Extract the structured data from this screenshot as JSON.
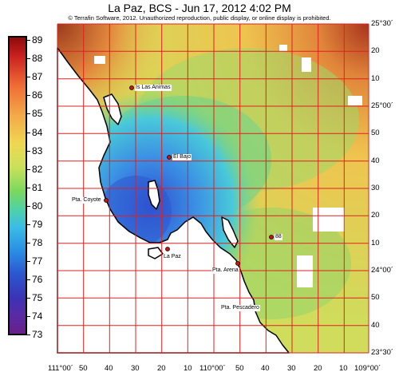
{
  "title": "La Paz, BCS - Jun 17, 2012 4:02 PM",
  "copyright": "© Terrafin Software, 2012.  Unauthorized reproduction, public display, or online display is prohibited.",
  "colorbar": {
    "labels": [
      "89",
      "88",
      "87",
      "86",
      "85",
      "84",
      "83",
      "82",
      "81",
      "80",
      "79",
      "78",
      "77",
      "76",
      "75",
      "74",
      "73"
    ]
  },
  "places": [
    {
      "name": "Is Las Animas",
      "color": "#d01010"
    },
    {
      "name": "El Bajo",
      "color": "#d01010"
    },
    {
      "name": "Pta. Coyote",
      "color": "#d01010"
    },
    {
      "name": "La Paz",
      "color": "#d01010"
    },
    {
      "name": "Pta. Arena",
      "color": "#d01010"
    },
    {
      "name": "Pta. Pescadero",
      "color": "#d01010"
    },
    {
      "name": "88",
      "color": "#d01010"
    }
  ],
  "lon_labels": [
    "111°00´",
    "50",
    "40",
    "30",
    "20",
    "10",
    "110°00´",
    "50",
    "40",
    "30",
    "20",
    "10",
    "109°00´"
  ],
  "lat_labels": [
    "25°30´",
    "20",
    "10",
    "25°00´",
    "50",
    "40",
    "30",
    "20",
    "10",
    "24°00´",
    "50",
    "40",
    "23°30´"
  ],
  "colors": {
    "grid": "#e02020",
    "land": "#ffffff",
    "coast": "#000000"
  }
}
